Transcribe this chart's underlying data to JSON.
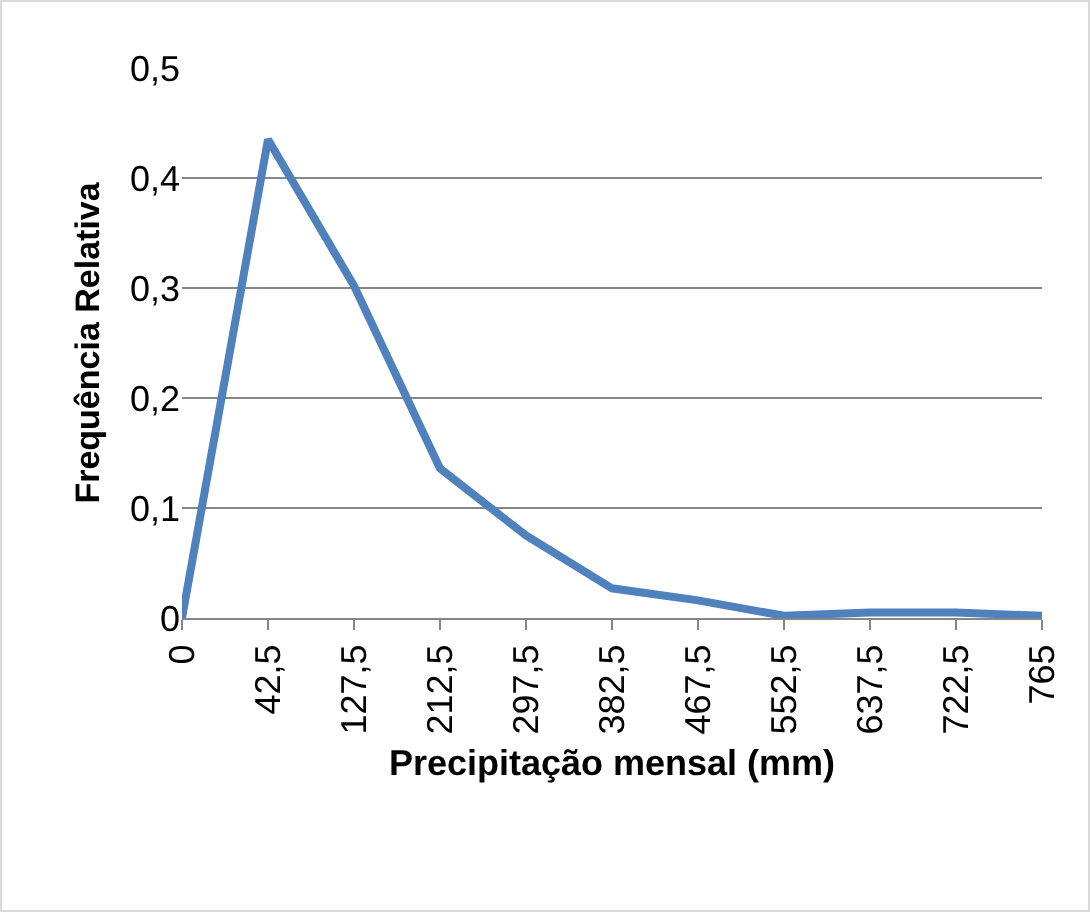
{
  "chart_data": {
    "type": "line",
    "xlabel": "Precipitação mensal (mm)",
    "ylabel": "Frequência Relativa",
    "categories": [
      "0",
      "42,5",
      "127,5",
      "212,5",
      "297,5",
      "382,5",
      "467,5",
      "552,5",
      "637,5",
      "722,5",
      "765"
    ],
    "series": [
      {
        "color": "#4f81bd",
        "values": [
          0,
          0.435,
          0.302,
          0.136,
          0.075,
          0.027,
          0.016,
          0.002,
          0.005,
          0.005,
          0.002
        ]
      }
    ],
    "ylim": [
      0,
      0.5
    ],
    "yticks": [
      0,
      {
        "value": 0.1,
        "label": "0,1"
      },
      {
        "value": 0.2,
        "label": "0,2"
      },
      {
        "value": 0.3,
        "label": "0,3"
      },
      {
        "value": 0.4,
        "label": "0,4"
      },
      {
        "value": 0.5,
        "label": "0,5"
      }
    ],
    "grid": "y",
    "marker": "none",
    "line_style": "solid"
  }
}
